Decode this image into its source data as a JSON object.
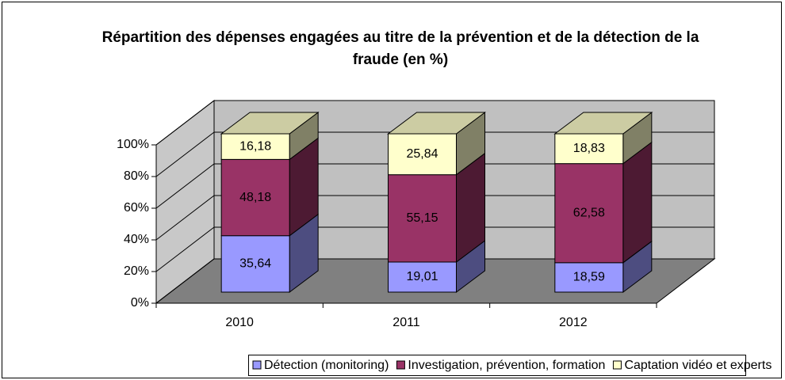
{
  "chart_data": {
    "type": "bar3d_stacked",
    "title": "Répartition des dépenses engagées au titre de la prévention et de la détection de la fraude (en %)",
    "categories": [
      "2010",
      "2011",
      "2012"
    ],
    "series": [
      {
        "name": "Détection (monitoring)",
        "color": "#9999ff",
        "values": [
          35.64,
          19.01,
          18.59
        ],
        "value_labels": [
          "35,64",
          "19,01",
          "18,59"
        ]
      },
      {
        "name": "Investigation, prévention, formation",
        "color": "#993366",
        "values": [
          48.18,
          55.15,
          62.58
        ],
        "value_labels": [
          "48,18",
          "55,15",
          "62,58"
        ]
      },
      {
        "name": "Captation vidéo et experts",
        "color": "#ffffcc",
        "values": [
          16.18,
          25.84,
          18.83
        ],
        "value_labels": [
          "16,18",
          "25,84",
          "18,83"
        ]
      }
    ],
    "ylim": [
      0,
      100
    ],
    "yticks": [
      {
        "value": 0,
        "label": "0%"
      },
      {
        "value": 20,
        "label": "20%"
      },
      {
        "value": 40,
        "label": "40%"
      },
      {
        "value": 60,
        "label": "60%"
      },
      {
        "value": 80,
        "label": "80%"
      },
      {
        "value": 100,
        "label": "100%"
      }
    ],
    "grid": true,
    "legend": "bottom"
  }
}
